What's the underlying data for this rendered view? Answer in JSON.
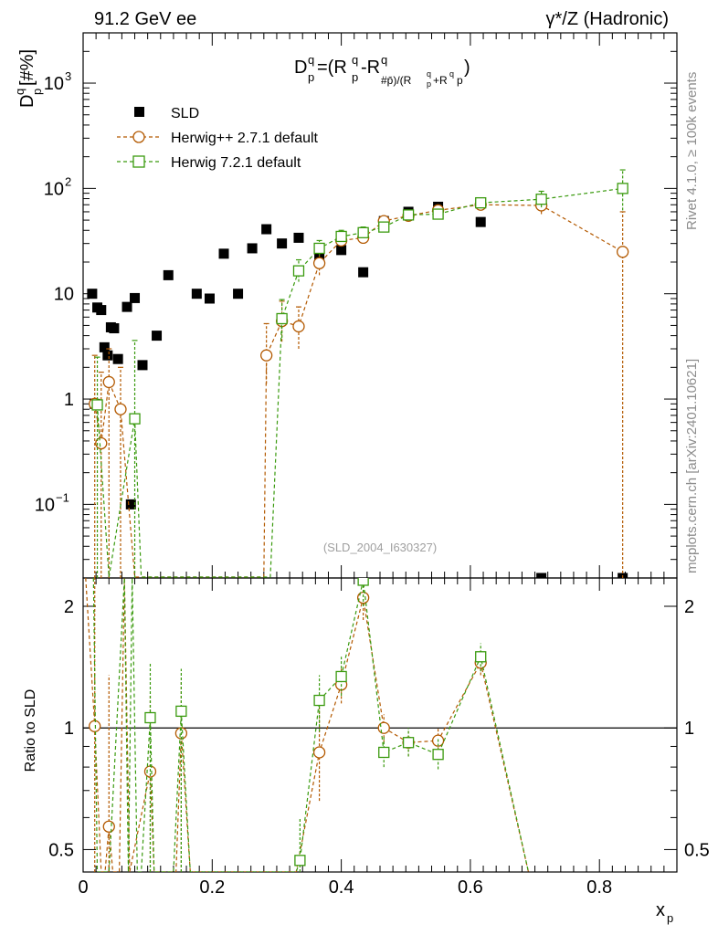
{
  "header": {
    "left_title": "91.2 GeV ee",
    "right_title": "γ*/Z (Hadronic)"
  },
  "side_labels": {
    "rivet": "Rivet 4.1.0, ≥ 100k events",
    "mcplots": "mcplots.cern.ch [arXiv:2401.10621]"
  },
  "watermark": "(SLD_2004_I630327)",
  "colors": {
    "data": "#000000",
    "herwig_pp": "#b35900",
    "herwig_7": "#3a9a0e",
    "axis": "#000000"
  },
  "chart_data": [
    {
      "type": "scatter",
      "name": "main",
      "title": "D_p^q = (R_p^q - R_p̄^q)/(R_p^q + R_p̄^q)",
      "ylabel": "D_p^q [#%]",
      "xlabel": "x_p",
      "yscale": "log",
      "xlim": [
        0,
        0.92
      ],
      "ylim": [
        0.02,
        3000
      ],
      "y_ticks": [
        {
          "value": 0.1,
          "label": "10",
          "sup": "−1"
        },
        {
          "value": 1,
          "label": "1",
          "sup": ""
        },
        {
          "value": 10,
          "label": "10",
          "sup": ""
        },
        {
          "value": 100,
          "label": "10",
          "sup": "2"
        },
        {
          "value": 1000,
          "label": "10",
          "sup": "3"
        }
      ],
      "legend": {
        "placement": "top-left",
        "entries": [
          "SLD",
          "Herwig++ 2.7.1 default",
          "Herwig 7.2.1 default"
        ]
      },
      "series": [
        {
          "name": "SLD",
          "marker": "filled-square",
          "points": [
            {
              "x": 0.014,
              "y": 10
            },
            {
              "x": 0.018,
              "y": 0.9
            },
            {
              "x": 0.022,
              "y": 7.4
            },
            {
              "x": 0.028,
              "y": 7.0
            },
            {
              "x": 0.033,
              "y": 3.1
            },
            {
              "x": 0.038,
              "y": 2.6
            },
            {
              "x": 0.043,
              "y": 4.8
            },
            {
              "x": 0.048,
              "y": 4.7
            },
            {
              "x": 0.054,
              "y": 2.4
            },
            {
              "x": 0.068,
              "y": 7.5
            },
            {
              "x": 0.074,
              "y": 0.1
            },
            {
              "x": 0.08,
              "y": 9.1
            },
            {
              "x": 0.092,
              "y": 2.1
            },
            {
              "x": 0.114,
              "y": 4.0
            },
            {
              "x": 0.132,
              "y": 15
            },
            {
              "x": 0.176,
              "y": 10
            },
            {
              "x": 0.196,
              "y": 9.0
            },
            {
              "x": 0.218,
              "y": 24
            },
            {
              "x": 0.24,
              "y": 10
            },
            {
              "x": 0.262,
              "y": 27
            },
            {
              "x": 0.284,
              "y": 41
            },
            {
              "x": 0.308,
              "y": 30
            },
            {
              "x": 0.334,
              "y": 34
            },
            {
              "x": 0.366,
              "y": 23
            },
            {
              "x": 0.4,
              "y": 26
            },
            {
              "x": 0.434,
              "y": 16
            },
            {
              "x": 0.466,
              "y": 49
            },
            {
              "x": 0.504,
              "y": 60
            },
            {
              "x": 0.55,
              "y": 67
            },
            {
              "x": 0.616,
              "y": 48
            },
            {
              "x": 0.71,
              "y": 0.02
            },
            {
              "x": 0.836,
              "y": 0.02
            }
          ]
        },
        {
          "name": "Herwig++ 2.7.1 default",
          "marker": "open-circle",
          "line": "dashed",
          "points": [
            {
              "x": 0.018,
              "y": 0.9,
              "err": [
                0.02,
                2.6
              ]
            },
            {
              "x": 0.028,
              "y": 0.38,
              "err": [
                0.02,
                1.8
              ]
            },
            {
              "x": 0.04,
              "y": 1.45,
              "err": [
                0.02,
                3.0
              ]
            },
            {
              "x": 0.058,
              "y": 0.8,
              "err": [
                0.02,
                2.0
              ]
            },
            {
              "x": 0.08,
              "y": 0.02
            },
            {
              "x": 0.28,
              "y": 0.02
            },
            {
              "x": 0.284,
              "y": 2.6,
              "err": [
                1.4,
                5.2
              ]
            },
            {
              "x": 0.308,
              "y": 5.5,
              "err": [
                3.5,
                8.5
              ]
            },
            {
              "x": 0.334,
              "y": 4.9,
              "err": [
                3.0,
                7.5
              ]
            },
            {
              "x": 0.366,
              "y": 19.5,
              "err": [
                15,
                25
              ]
            },
            {
              "x": 0.4,
              "y": 32,
              "err": [
                28,
                37
              ]
            },
            {
              "x": 0.434,
              "y": 34,
              "err": [
                30,
                39
              ]
            },
            {
              "x": 0.466,
              "y": 49,
              "err": [
                45,
                54
              ]
            },
            {
              "x": 0.504,
              "y": 55,
              "err": [
                51,
                60
              ]
            },
            {
              "x": 0.55,
              "y": 62,
              "err": [
                57,
                67
              ]
            },
            {
              "x": 0.616,
              "y": 70,
              "err": [
                65,
                76
              ]
            },
            {
              "x": 0.71,
              "y": 69,
              "err": [
                57,
                83
              ]
            },
            {
              "x": 0.836,
              "y": 25,
              "err": [
                0.02,
                60
              ]
            }
          ]
        },
        {
          "name": "Herwig 7.2.1 default",
          "marker": "open-square",
          "line": "dashed",
          "points": [
            {
              "x": 0.022,
              "y": 0.88,
              "err": [
                0.02,
                2.5
              ]
            },
            {
              "x": 0.04,
              "y": 0.02
            },
            {
              "x": 0.08,
              "y": 0.65,
              "err": [
                0.02,
                3.6
              ]
            },
            {
              "x": 0.09,
              "y": 0.02
            },
            {
              "x": 0.29,
              "y": 0.02
            },
            {
              "x": 0.308,
              "y": 5.8,
              "err": [
                3.8,
                8.8
              ]
            },
            {
              "x": 0.334,
              "y": 16.5,
              "err": [
                13,
                21
              ]
            },
            {
              "x": 0.366,
              "y": 27,
              "err": [
                23,
                32
              ]
            },
            {
              "x": 0.4,
              "y": 35,
              "err": [
                31,
                40
              ]
            },
            {
              "x": 0.434,
              "y": 38,
              "err": [
                34,
                43
              ]
            },
            {
              "x": 0.466,
              "y": 43,
              "err": [
                39,
                48
              ]
            },
            {
              "x": 0.504,
              "y": 56,
              "err": [
                52,
                61
              ]
            },
            {
              "x": 0.55,
              "y": 57,
              "err": [
                52,
                62
              ]
            },
            {
              "x": 0.616,
              "y": 73,
              "err": [
                68,
                79
              ]
            },
            {
              "x": 0.71,
              "y": 79,
              "err": [
                66,
                94
              ]
            },
            {
              "x": 0.836,
              "y": 100,
              "err": [
                62,
                150
              ]
            }
          ]
        }
      ]
    },
    {
      "type": "line",
      "name": "ratio",
      "ylabel": "Ratio to SLD",
      "xlabel": "x_p",
      "yscale": "log",
      "xlim": [
        0,
        0.92
      ],
      "ylim": [
        0.44,
        2.35
      ],
      "x_ticks": [
        {
          "value": 0,
          "label": "0"
        },
        {
          "value": 0.2,
          "label": "0.2"
        },
        {
          "value": 0.4,
          "label": "0.4"
        },
        {
          "value": 0.6,
          "label": "0.6"
        },
        {
          "value": 0.8,
          "label": "0.8"
        }
      ],
      "y_ticks": [
        {
          "value": 0.5,
          "label": "0.5"
        },
        {
          "value": 1,
          "label": "1"
        },
        {
          "value": 2,
          "label": "2"
        }
      ],
      "reference_line": 1,
      "series": [
        {
          "name": "Herwig++ 2.7.1 default",
          "points": [
            {
              "x": 0.004,
              "y": 2.35
            },
            {
              "x": 0.018,
              "y": 1.01,
              "err": [
                0.44,
                2.35
              ]
            },
            {
              "x": 0.028,
              "y": 0.44
            },
            {
              "x": 0.034,
              "y": 0.44
            },
            {
              "x": 0.04,
              "y": 0.57,
              "err": [
                0.44,
                1.35
              ]
            },
            {
              "x": 0.046,
              "y": 0.44
            },
            {
              "x": 0.056,
              "y": 0.44
            },
            {
              "x": 0.064,
              "y": 2.35
            },
            {
              "x": 0.072,
              "y": 0.44
            },
            {
              "x": 0.104,
              "y": 0.78,
              "err": [
                0.44,
                1.2
              ]
            },
            {
              "x": 0.11,
              "y": 0.44
            },
            {
              "x": 0.144,
              "y": 0.44
            },
            {
              "x": 0.152,
              "y": 0.97,
              "err": [
                0.44,
                1.3
              ]
            },
            {
              "x": 0.166,
              "y": 0.44
            },
            {
              "x": 0.33,
              "y": 0.44
            },
            {
              "x": 0.366,
              "y": 0.87,
              "err": [
                0.66,
                1.12
              ]
            },
            {
              "x": 0.4,
              "y": 1.28,
              "err": [
                1.15,
                1.42
              ]
            },
            {
              "x": 0.434,
              "y": 2.1,
              "err": [
                1.85,
                2.35
              ]
            },
            {
              "x": 0.466,
              "y": 1.0,
              "err": [
                0.92,
                1.08
              ]
            },
            {
              "x": 0.504,
              "y": 0.92,
              "err": [
                0.85,
                0.99
              ]
            },
            {
              "x": 0.55,
              "y": 0.93,
              "err": [
                0.86,
                1.0
              ]
            },
            {
              "x": 0.616,
              "y": 1.45,
              "err": [
                1.35,
                1.55
              ]
            },
            {
              "x": 0.69,
              "y": 0.44
            }
          ]
        },
        {
          "name": "Herwig 7.2.1 default",
          "points": [
            {
              "x": 0.016,
              "y": 2.35
            },
            {
              "x": 0.022,
              "y": 0.44
            },
            {
              "x": 0.04,
              "y": 0.44
            },
            {
              "x": 0.064,
              "y": 2.35
            },
            {
              "x": 0.07,
              "y": 0.44
            },
            {
              "x": 0.076,
              "y": 2.35
            },
            {
              "x": 0.084,
              "y": 0.44
            },
            {
              "x": 0.09,
              "y": 0.44
            },
            {
              "x": 0.104,
              "y": 1.06,
              "err": [
                0.44,
                1.45
              ]
            },
            {
              "x": 0.11,
              "y": 0.44
            },
            {
              "x": 0.14,
              "y": 0.44
            },
            {
              "x": 0.152,
              "y": 1.1,
              "err": [
                0.44,
                1.4
              ]
            },
            {
              "x": 0.166,
              "y": 0.44
            },
            {
              "x": 0.33,
              "y": 0.44
            },
            {
              "x": 0.336,
              "y": 0.47,
              "err": [
                0.44,
                0.6
              ]
            },
            {
              "x": 0.366,
              "y": 1.17,
              "err": [
                0.98,
                1.35
              ]
            },
            {
              "x": 0.4,
              "y": 1.34,
              "err": [
                1.2,
                1.5
              ]
            },
            {
              "x": 0.434,
              "y": 2.32,
              "err": [
                2.0,
                2.35
              ]
            },
            {
              "x": 0.466,
              "y": 0.87,
              "err": [
                0.8,
                0.95
              ]
            },
            {
              "x": 0.504,
              "y": 0.92,
              "err": [
                0.85,
                1.0
              ]
            },
            {
              "x": 0.55,
              "y": 0.86,
              "err": [
                0.79,
                0.94
              ]
            },
            {
              "x": 0.616,
              "y": 1.5,
              "err": [
                1.38,
                1.62
              ]
            },
            {
              "x": 0.69,
              "y": 0.44
            }
          ]
        }
      ]
    }
  ]
}
